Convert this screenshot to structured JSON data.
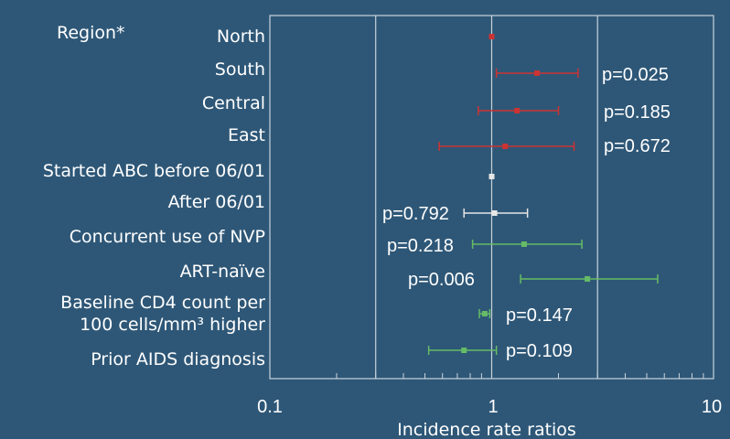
{
  "chart_data": {
    "type": "forest",
    "xlabel": "Incidence rate ratios",
    "xscale": "log",
    "xlim": [
      0.1,
      10
    ],
    "x_ticks": [
      "0.1",
      "1",
      "10"
    ],
    "reference_lines": [
      0.3,
      1,
      3
    ],
    "group_label": "Region*",
    "rows": [
      {
        "label": "North",
        "est": 1.0,
        "lo": 1.0,
        "hi": 1.0,
        "p": "",
        "color": "#cc3333"
      },
      {
        "label": "South",
        "est": 1.6,
        "lo": 1.05,
        "hi": 2.45,
        "p": "p=0.025",
        "color": "#cc3333"
      },
      {
        "label": "Central",
        "est": 1.3,
        "lo": 0.87,
        "hi": 2.0,
        "p": "p=0.185",
        "color": "#cc3333"
      },
      {
        "label": "East",
        "est": 1.15,
        "lo": 0.58,
        "hi": 2.35,
        "p": "p=0.672",
        "color": "#cc3333"
      },
      {
        "label": "Started ABC before 06/01",
        "est": 1.0,
        "lo": 1.0,
        "hi": 1.0,
        "p": "",
        "color": "#e6e6e6"
      },
      {
        "label": "After 06/01",
        "est": 1.03,
        "lo": 0.75,
        "hi": 1.45,
        "p": "p=0.792",
        "color": "#e6e6e6"
      },
      {
        "label": "Concurrent use of NVP",
        "est": 1.4,
        "lo": 0.82,
        "hi": 2.55,
        "p": "p=0.218",
        "color": "#66bb66"
      },
      {
        "label": "ART-naïve",
        "est": 2.7,
        "lo": 1.35,
        "hi": 5.6,
        "p": "p=0.006",
        "color": "#66bb66"
      },
      {
        "label": "Baseline CD4 count per 100 cells/mm³ higher",
        "est": 0.93,
        "lo": 0.88,
        "hi": 0.98,
        "p": "p=0.147",
        "color": "#66bb66"
      },
      {
        "label": "Prior AIDS diagnosis",
        "est": 0.75,
        "lo": 0.52,
        "hi": 1.05,
        "p": "p=0.109",
        "color": "#66bb66"
      }
    ]
  }
}
